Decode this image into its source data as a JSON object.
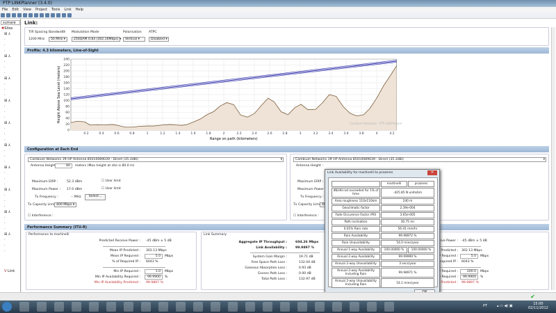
{
  "window": {
    "title": "PTP LINKPlanner (3.4.0)"
  },
  "menu": [
    "File",
    "Edit",
    "View",
    "Project",
    "Tools",
    "Link",
    "Help"
  ],
  "tree": {
    "selector": "sumare",
    "root": "Sites",
    "link_item": "Link"
  },
  "link": {
    "label": "Link:"
  },
  "top_config": {
    "tr_spacing_label": "T/R Spacing",
    "tr_spacing": "1200 MHz",
    "bandwidth_label": "Bandwidth",
    "bandwidth": "50 MHz",
    "modulation_label": "Modulation Mode",
    "modulation": "256QAM 0.83 (302.16Mbps)",
    "polarisation_label": "Polarisation",
    "polarisation": "Vertical",
    "atpc_label": "ATPC",
    "atpc": "Disabled"
  },
  "profile": {
    "header": "Profile: 4.3 kilometers, Line-of-Sight",
    "watermark": "Cambium Networks - PTP LINKPlanner"
  },
  "chart_data": {
    "type": "area",
    "xlabel": "Range on path (kilometers)",
    "ylabel": "Height Above Sea Level (meters)",
    "xlim": [
      0,
      4.26
    ],
    "ylim": [
      0,
      240
    ],
    "xticks": [
      0.2,
      0.4,
      0.6,
      0.8,
      1,
      1.2,
      1.4,
      1.6,
      1.8,
      2,
      2.2,
      2.4,
      2.6,
      2.8,
      3,
      3.2,
      3.4,
      3.6,
      3.8,
      4,
      4.2
    ],
    "yticks": [
      0,
      20,
      40,
      60,
      80,
      100,
      120,
      140,
      160,
      180,
      200,
      220,
      240
    ],
    "grid": true,
    "terrain": {
      "x": [
        0,
        0.08,
        0.18,
        0.25,
        0.36,
        0.45,
        0.54,
        0.63,
        0.71,
        0.81,
        0.9,
        1.0,
        1.08,
        1.2,
        1.3,
        1.38,
        1.45,
        1.51,
        1.6,
        1.69,
        1.78,
        1.87,
        1.95,
        2.04,
        2.13,
        2.22,
        2.31,
        2.4,
        2.49,
        2.58,
        2.66,
        2.75,
        2.84,
        2.93,
        3.01,
        3.1,
        3.2,
        3.29,
        3.38,
        3.47,
        3.56,
        3.65,
        3.74,
        3.83,
        3.91,
        4.0,
        4.09,
        4.18,
        4.26
      ],
      "y": [
        25,
        30,
        28,
        17,
        18,
        17,
        19,
        15,
        10,
        10,
        13,
        14,
        14,
        17,
        19,
        17,
        16,
        18,
        27,
        37,
        52,
        63,
        81,
        93,
        86,
        51,
        44,
        56,
        83,
        108,
        95,
        62,
        52,
        76,
        87,
        69,
        70,
        92,
        120,
        114,
        80,
        57,
        48,
        52,
        73,
        108,
        150,
        185,
        217
      ],
      "color": "#7a5c3a",
      "fill": "#eee3d6"
    },
    "line_of_sight": {
      "x": [
        0,
        4.26
      ],
      "y": [
        106,
        233
      ],
      "color": "#3b3bb0"
    }
  },
  "config_end": {
    "header": "Configuration at Each End",
    "left": {
      "antenna": "Cambium Networks 1ft HP Antenna 85010089039 - Direct (35.3dBi)",
      "antenna_height_label": "Antenna Height :",
      "antenna_height": "80",
      "antenna_height_note": "meters  (Max height at site is 80.0 m)",
      "max_eirp_label": "Maximum EIRP :",
      "max_eirp": "52.3 dBm",
      "max_power_label": "Maximum Power :",
      "max_power": "17.0 dBm",
      "user_limit": "User limit",
      "tx_freq_label": "Tx Frequency :",
      "tx_freq": "-- MHz",
      "select": "Select...",
      "tx_cap_label": "Tx Capacity Limit :",
      "tx_cap": "400 Mbps",
      "interference": "Interference :"
    },
    "right": {
      "antenna": "Cambium Networks 1ft HP Antenna 85010089039 - Direct (35.3dBi)",
      "antenna_height_label": "Antenna Height :",
      "max_eirp_label": "Maximum EIRP :",
      "max_power_label": "Maximum Power :",
      "tx_freq_label": "Tx Frequency :",
      "tx_cap_label": "Tx Capacity Limit :",
      "tx_cap": "400",
      "interference": "Interference :"
    }
  },
  "performance": {
    "header": "Performance Summary (ITU-R)",
    "left": {
      "title": "Performance to martinelli",
      "rows": [
        {
          "label": "Predicted Receive Power :",
          "value": "-45 dBm ± 5 dB"
        },
        {
          "label": "Mean IP Predicted :",
          "value": "302.13 Mbps"
        },
        {
          "label": "Mean IP Required :",
          "value": "5.0",
          "unit": "Mbps"
        },
        {
          "label": "% of Required IP :",
          "value": "6043 %"
        },
        {
          "label": "Min IP Required :",
          "value": "1.0",
          "unit": "Mbps"
        },
        {
          "label": "Min IP Availability Required :",
          "value": "99.9900",
          "unit": "%"
        },
        {
          "label": "Min IP Availability Predicted :",
          "value": "99.9897 %"
        }
      ]
    },
    "summary": {
      "title": "Link Summary",
      "aggregate_label": "Aggregate IP Throughput :",
      "aggregate": "604.26 Mbps",
      "availability_label": "Link Availability :",
      "availability": "99.9897 %",
      "rows": [
        {
          "label": "System Gain Margin :",
          "value": "19.71 dB"
        },
        {
          "label": "Free Space Path Loss :",
          "value": "132.04 dB"
        },
        {
          "label": "Gaseous Absorption Loss :",
          "value": "0.93 dB"
        },
        {
          "label": "Excess Path Loss :",
          "value": "0.00 dB"
        },
        {
          "label": "Total Path Loss :",
          "value": "132.97 dB"
        }
      ]
    },
    "right": {
      "rows": [
        {
          "label": "ed Receive Power :",
          "value": "-45 dBm ± 5 dB"
        },
        {
          "label": "Mean IP Predicted :",
          "value": "302.13 Mbps"
        },
        {
          "label": "Mean IP Required :",
          "value": "5.0",
          "unit": "Mbps"
        },
        {
          "label": "% of Required IP :",
          "value": "6043 %"
        },
        {
          "label": "Min IP Required :",
          "value": "200.0",
          "unit": "Mbps"
        },
        {
          "label": "ailability Required :",
          "value": "99.9900",
          "unit": "%"
        },
        {
          "label": "ailability Predicted :",
          "value": "99.9897 %"
        }
      ]
    }
  },
  "dialog": {
    "title": "Link Availability for martinelli to prazeres",
    "col1": "martinelli",
    "col2": "prazeres",
    "ok": "OK",
    "rows": [
      {
        "label": "dN/dH not exceeded for 1% of time",
        "value": "-425.85 N units/km"
      },
      {
        "label": "Area roughness 110x110km",
        "value": "240 m"
      },
      {
        "label": "Geoclimatic factor",
        "value": "2.39e-004"
      },
      {
        "label": "Fade Occurence Factor (P0)",
        "value": "3.65e-005"
      },
      {
        "label": "Path inclination",
        "value": "30.75 mr"
      },
      {
        "label": "0.01% Rain rate",
        "value": "56.41 mm/hr"
      },
      {
        "label": "Rain Availability",
        "value": "99.98972 %"
      },
      {
        "label": "Rain Unavailability",
        "value": "54.0 mins/year"
      },
      {
        "label": "Annual 1-way Availability",
        "value": "100.00000 %",
        "value2": "100.00000 %"
      },
      {
        "label": "Annual 2-way Availability",
        "value": "99.99999 %"
      },
      {
        "label": "Annual 2-way Unavailability",
        "value": "3 secs/year"
      },
      {
        "label": "Annual 2-way Availability Including Rain",
        "value": "99.98971 %"
      },
      {
        "label": "Annual 2-way Unavailability Including Rain",
        "value": "54.1 mins/year"
      }
    ]
  },
  "taskbar": {
    "lang": "PT",
    "time": "15:00",
    "date": "02/11/2012"
  }
}
